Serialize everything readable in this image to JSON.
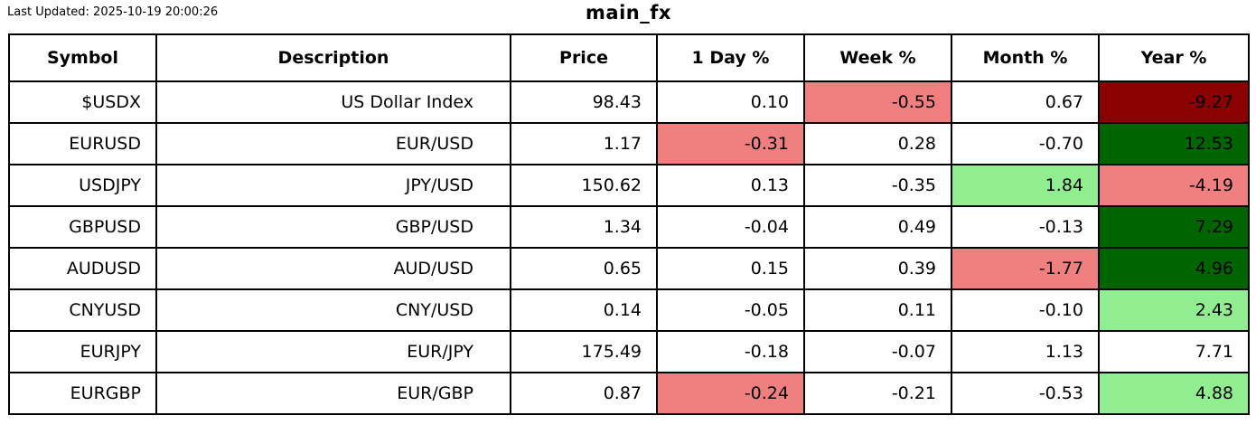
{
  "meta": {
    "last_updated": "Last Updated: 2025-10-19 20:00:26"
  },
  "colors": {
    "lightcoral": "#f08080",
    "lightgreen": "#90ee90",
    "darkred": "#8b0000",
    "darkgreen": "#006400",
    "none": "#ffffff",
    "border": "#000000",
    "text": "#000000"
  },
  "chart_data": {
    "type": "table",
    "title": "main_fx",
    "columns": [
      "Symbol",
      "Description",
      "Price",
      "1 Day %",
      "Week %",
      "Month %",
      "Year %"
    ],
    "rows": [
      {
        "symbol": "$USDX",
        "description": "US Dollar Index",
        "price": "98.43",
        "day": "0.10",
        "week": "-0.55",
        "month": "0.67",
        "year": "-9.27",
        "cell_colors": {
          "day": "none",
          "week": "lightcoral",
          "month": "none",
          "year": "darkred"
        }
      },
      {
        "symbol": "EURUSD",
        "description": "EUR/USD",
        "price": "1.17",
        "day": "-0.31",
        "week": "0.28",
        "month": "-0.70",
        "year": "12.53",
        "cell_colors": {
          "day": "lightcoral",
          "week": "none",
          "month": "none",
          "year": "darkgreen"
        }
      },
      {
        "symbol": "USDJPY",
        "description": "JPY/USD",
        "price": "150.62",
        "day": "0.13",
        "week": "-0.35",
        "month": "1.84",
        "year": "-4.19",
        "cell_colors": {
          "day": "none",
          "week": "none",
          "month": "lightgreen",
          "year": "lightcoral"
        }
      },
      {
        "symbol": "GBPUSD",
        "description": "GBP/USD",
        "price": "1.34",
        "day": "-0.04",
        "week": "0.49",
        "month": "-0.13",
        "year": "7.29",
        "cell_colors": {
          "day": "none",
          "week": "none",
          "month": "none",
          "year": "darkgreen"
        }
      },
      {
        "symbol": "AUDUSD",
        "description": "AUD/USD",
        "price": "0.65",
        "day": "0.15",
        "week": "0.39",
        "month": "-1.77",
        "year": "4.96",
        "cell_colors": {
          "day": "none",
          "week": "none",
          "month": "lightcoral",
          "year": "darkgreen"
        }
      },
      {
        "symbol": "CNYUSD",
        "description": "CNY/USD",
        "price": "0.14",
        "day": "-0.05",
        "week": "0.11",
        "month": "-0.10",
        "year": "2.43",
        "cell_colors": {
          "day": "none",
          "week": "none",
          "month": "none",
          "year": "lightgreen"
        }
      },
      {
        "symbol": "EURJPY",
        "description": "EUR/JPY",
        "price": "175.49",
        "day": "-0.18",
        "week": "-0.07",
        "month": "1.13",
        "year": "7.71",
        "cell_colors": {
          "day": "none",
          "week": "none",
          "month": "none",
          "year": "none"
        }
      },
      {
        "symbol": "EURGBP",
        "description": "EUR/GBP",
        "price": "0.87",
        "day": "-0.24",
        "week": "-0.21",
        "month": "-0.53",
        "year": "4.88",
        "cell_colors": {
          "day": "lightcoral",
          "week": "none",
          "month": "none",
          "year": "lightgreen"
        }
      }
    ]
  }
}
